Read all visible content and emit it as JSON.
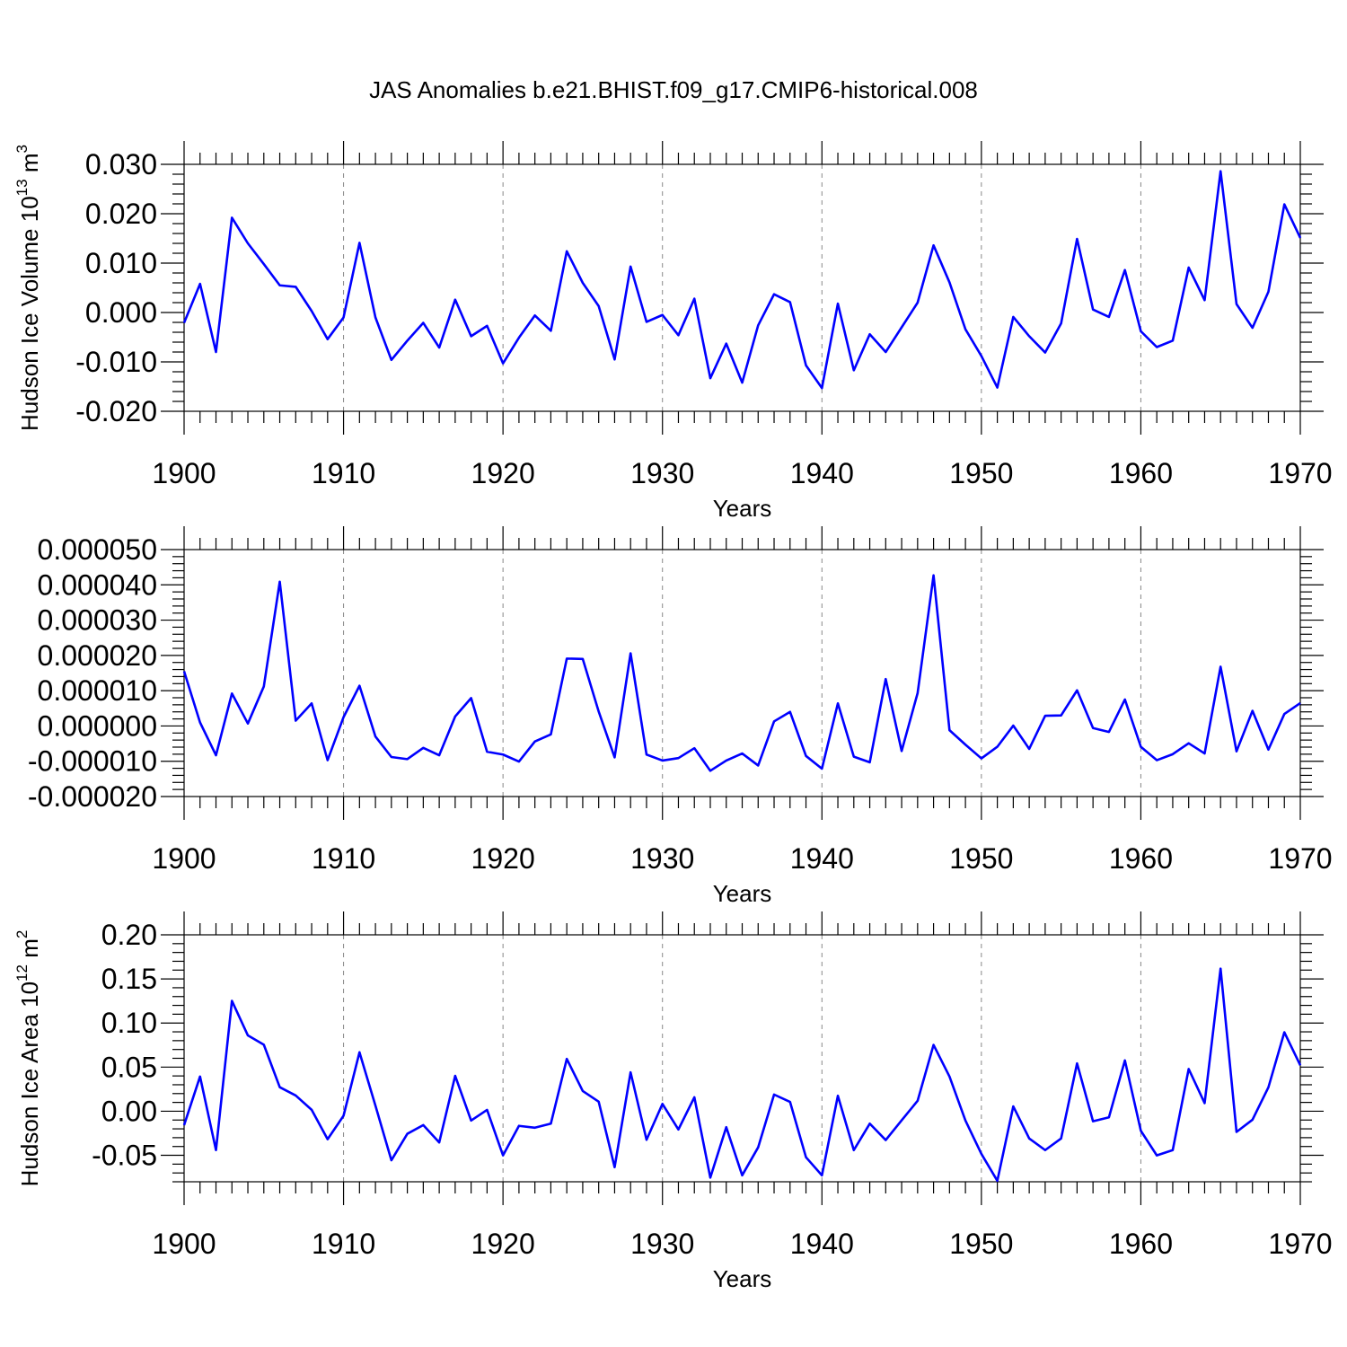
{
  "figure": {
    "title": "JAS Anomalies b.e21.BHIST.f09_g17.CMIP6-historical.008"
  },
  "chart_data": [
    {
      "type": "line",
      "title": "JAS Anomalies b.e21.BHIST.f09_g17.CMIP6-historical.008",
      "xlabel": "Years",
      "ylabel": "Hudson Ice Volume 10",
      "ylabel_exp": "13",
      "ylabel_unit": " m",
      "ylabel_unit_exp": "3",
      "xlim": [
        1900,
        1970
      ],
      "ylim": [
        -0.02,
        0.03
      ],
      "yticks": [
        -0.02,
        -0.01,
        0.0,
        0.01,
        0.02,
        0.03
      ],
      "ytick_labels": [
        "-0.020",
        "-0.010",
        "0.000",
        "0.010",
        "0.020",
        "0.030"
      ],
      "xticks": [
        1900,
        1910,
        1920,
        1930,
        1940,
        1950,
        1960,
        1970
      ],
      "xtick_labels": [
        "1900",
        "1910",
        "1920",
        "1930",
        "1940",
        "1950",
        "1960",
        "1970"
      ],
      "line_color": "#0000ff",
      "x": [
        1900,
        1901,
        1902,
        1903,
        1904,
        1905,
        1906,
        1907,
        1908,
        1909,
        1910,
        1911,
        1912,
        1913,
        1914,
        1915,
        1916,
        1917,
        1918,
        1919,
        1920,
        1921,
        1922,
        1923,
        1924,
        1925,
        1926,
        1927,
        1928,
        1929,
        1930,
        1931,
        1932,
        1933,
        1934,
        1935,
        1936,
        1937,
        1938,
        1939,
        1940,
        1941,
        1942,
        1943,
        1944,
        1945,
        1946,
        1947,
        1948,
        1949,
        1950,
        1951,
        1952,
        1953,
        1954,
        1955,
        1956,
        1957,
        1958,
        1959,
        1960,
        1961,
        1962,
        1963,
        1964,
        1965,
        1966,
        1967,
        1968,
        1969,
        1970
      ],
      "values": [
        -0.0021,
        0.0058,
        -0.008,
        0.0192,
        0.014,
        0.0098,
        0.0055,
        0.0052,
        0.0003,
        -0.0054,
        -0.001,
        0.0141,
        -0.001,
        -0.0096,
        -0.0057,
        -0.0021,
        -0.0071,
        0.0026,
        -0.0048,
        -0.0027,
        -0.0103,
        -0.0051,
        -0.0006,
        -0.0037,
        0.0124,
        0.006,
        0.0013,
        -0.0095,
        0.0093,
        -0.0019,
        -0.0005,
        -0.0046,
        0.0028,
        -0.0133,
        -0.0063,
        -0.0142,
        -0.0026,
        0.0037,
        0.0021,
        -0.0107,
        -0.0153,
        0.0018,
        -0.0117,
        -0.0044,
        -0.008,
        -0.003,
        0.002,
        0.0136,
        0.0061,
        -0.0034,
        -0.0088,
        -0.0152,
        -0.0009,
        -0.0048,
        -0.0081,
        -0.0022,
        0.0149,
        0.0006,
        -0.0009,
        0.0086,
        -0.0038,
        -0.007,
        -0.0057,
        0.0091,
        0.0025,
        0.0286,
        0.0017,
        -0.0031,
        0.0042,
        0.0219,
        0.0151
      ]
    },
    {
      "type": "line",
      "xlabel": "Years",
      "ylabel": "",
      "xlim": [
        1900,
        1970
      ],
      "ylim": [
        -2e-05,
        5e-05
      ],
      "yticks": [
        -2e-05,
        -1e-05,
        0.0,
        1e-05,
        2e-05,
        3e-05,
        4e-05,
        5e-05
      ],
      "ytick_labels": [
        "-0.000020",
        "-0.000010",
        "0.000000",
        "0.000010",
        "0.000020",
        "0.000030",
        "0.000040",
        "0.000050"
      ],
      "xticks": [
        1900,
        1910,
        1920,
        1930,
        1940,
        1950,
        1960,
        1970
      ],
      "xtick_labels": [
        "1900",
        "1910",
        "1920",
        "1930",
        "1940",
        "1950",
        "1960",
        "1970"
      ],
      "line_color": "#0000ff",
      "x": [
        1900,
        1901,
        1902,
        1903,
        1904,
        1905,
        1906,
        1907,
        1908,
        1909,
        1910,
        1911,
        1912,
        1913,
        1914,
        1915,
        1916,
        1917,
        1918,
        1919,
        1920,
        1921,
        1922,
        1923,
        1924,
        1925,
        1926,
        1927,
        1928,
        1929,
        1930,
        1931,
        1932,
        1933,
        1934,
        1935,
        1936,
        1937,
        1938,
        1939,
        1940,
        1941,
        1942,
        1943,
        1944,
        1945,
        1946,
        1947,
        1948,
        1949,
        1950,
        1951,
        1952,
        1953,
        1954,
        1955,
        1956,
        1957,
        1958,
        1959,
        1960,
        1961,
        1962,
        1963,
        1964,
        1965,
        1966,
        1967,
        1968,
        1969,
        1970
      ],
      "values": [
        1.55e-05,
        1e-06,
        -8.3e-06,
        9.2e-06,
        7e-07,
        1.12e-05,
        4.09e-05,
        1.5e-06,
        6.4e-06,
        -9.7e-06,
        2.5e-06,
        1.14e-05,
        -3e-06,
        -8.8e-06,
        -9.4e-06,
        -6.2e-06,
        -8.3e-06,
        2.7e-06,
        7.9e-06,
        -7.3e-06,
        -8.1e-06,
        -1.01e-05,
        -4.4e-06,
        -2.4e-06,
        1.91e-05,
        1.9e-05,
        4.1e-06,
        -8.9e-06,
        2.06e-05,
        -8.1e-06,
        -9.8e-06,
        -9.1e-06,
        -6.3e-06,
        -1.27e-05,
        -9.8e-06,
        -7.8e-06,
        -1.12e-05,
        1.3e-06,
        4e-06,
        -8.5e-06,
        -1.21e-05,
        6.4e-06,
        -8.7e-06,
        -1.03e-05,
        1.33e-05,
        -7.1e-06,
        9.3e-06,
        4.27e-05,
        -1.2e-06,
        -5.3e-06,
        -9.2e-06,
        -5.9e-06,
        1e-07,
        -6.5e-06,
        2.9e-06,
        3e-06,
        1.01e-05,
        -6e-07,
        -1.7e-06,
        7.5e-06,
        -5.9e-06,
        -9.7e-06,
        -8e-06,
        -4.9e-06,
        -7.8e-06,
        1.68e-05,
        -7.2e-06,
        4.3e-06,
        -6.7e-06,
        3.4e-06,
        6.5e-06
      ]
    },
    {
      "type": "line",
      "xlabel": "Years",
      "ylabel": "Hudson Ice Area 10",
      "ylabel_exp": "12",
      "ylabel_unit": " m",
      "ylabel_unit_exp": "2",
      "xlim": [
        1900,
        1970
      ],
      "ylim": [
        -0.08,
        0.2
      ],
      "yticks": [
        -0.05,
        0.0,
        0.05,
        0.1,
        0.15,
        0.2
      ],
      "ytick_labels": [
        "-0.05",
        "0.00",
        "0.05",
        "0.10",
        "0.15",
        "0.20"
      ],
      "xticks": [
        1900,
        1910,
        1920,
        1930,
        1940,
        1950,
        1960,
        1970
      ],
      "xtick_labels": [
        "1900",
        "1910",
        "1920",
        "1930",
        "1940",
        "1950",
        "1960",
        "1970"
      ],
      "line_color": "#0000ff",
      "x": [
        1900,
        1901,
        1902,
        1903,
        1904,
        1905,
        1906,
        1907,
        1908,
        1909,
        1910,
        1911,
        1912,
        1913,
        1914,
        1915,
        1916,
        1917,
        1918,
        1919,
        1920,
        1921,
        1922,
        1923,
        1924,
        1925,
        1926,
        1927,
        1928,
        1929,
        1930,
        1931,
        1932,
        1933,
        1934,
        1935,
        1936,
        1937,
        1938,
        1939,
        1940,
        1941,
        1942,
        1943,
        1944,
        1945,
        1946,
        1947,
        1948,
        1949,
        1950,
        1951,
        1952,
        1953,
        1954,
        1955,
        1956,
        1957,
        1958,
        1959,
        1960,
        1961,
        1962,
        1963,
        1964,
        1965,
        1966,
        1967,
        1968,
        1969,
        1970
      ],
      "values": [
        -0.0158,
        0.0393,
        -0.0441,
        0.1251,
        0.0859,
        0.0754,
        0.0272,
        0.0178,
        0.0016,
        -0.0318,
        -0.0051,
        0.0668,
        0.0063,
        -0.0556,
        -0.0256,
        -0.0157,
        -0.0354,
        0.0401,
        -0.0106,
        0.0015,
        -0.0501,
        -0.0166,
        -0.0187,
        -0.0141,
        0.0593,
        0.0229,
        0.0108,
        -0.0635,
        0.0441,
        -0.0324,
        0.0083,
        -0.0207,
        0.0158,
        -0.0753,
        -0.0181,
        -0.0727,
        -0.041,
        0.0189,
        0.0106,
        -0.0522,
        -0.0727,
        0.0175,
        -0.0441,
        -0.0141,
        -0.0327,
        -0.0103,
        0.0118,
        0.0752,
        0.0393,
        -0.0106,
        -0.0484,
        -0.0789,
        0.0055,
        -0.0309,
        -0.0441,
        -0.0309,
        0.0542,
        -0.0114,
        -0.0069,
        0.0576,
        -0.0222,
        -0.0501,
        -0.0441,
        0.0479,
        0.0092,
        0.1617,
        -0.0235,
        -0.0097,
        0.0271,
        0.0895,
        0.0521
      ]
    }
  ]
}
